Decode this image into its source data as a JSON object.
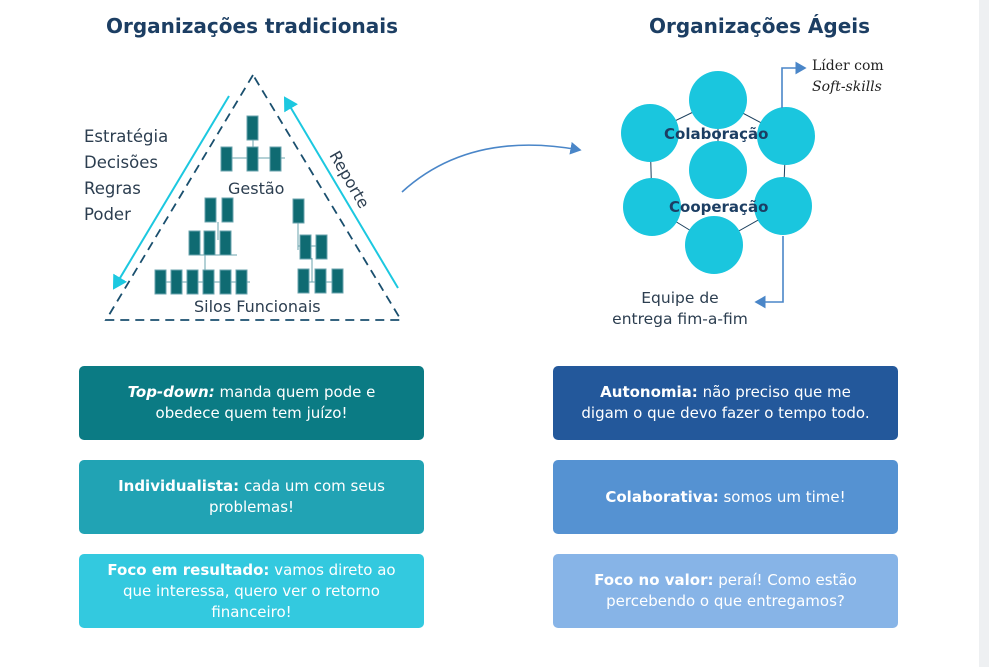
{
  "left": {
    "title": "Organizações tradicionais",
    "list": [
      "Estratégia",
      "Decisões",
      "Regras",
      "Poder"
    ],
    "reporte": "Reporte",
    "gestao": "Gestão",
    "silos": "Silos Funcionais"
  },
  "right": {
    "title": "Organizações Ágeis",
    "colaboracao": "Colaboração",
    "cooperacao": "Cooperação",
    "lider_line1": "Líder com",
    "lider_line2": "Soft-skills",
    "equipe_line1": "Equipe de",
    "equipe_line2": "entrega fim-a-fim"
  },
  "cards_left": [
    {
      "bold": "Top-down:",
      "text": " manda quem pode e obedece quem tem juízo!",
      "color": "#0b7b84"
    },
    {
      "bold": "Individualista:",
      "text": " cada um com seus problemas!",
      "color": "#21a3b4"
    },
    {
      "bold": "Foco em resultado:",
      "text": " vamos direto ao que interessa, quero ver o retorno financeiro!",
      "color": "#33c9df"
    }
  ],
  "cards_right": [
    {
      "bold": "Autonomia:",
      "text": " não preciso que me digam o que devo fazer o tempo todo.",
      "color": "#23589b"
    },
    {
      "bold": "Colaborativa:",
      "text": " somos um time!",
      "color": "#5592d2"
    },
    {
      "bold": "Foco no valor:",
      "text": " peraí! Como estão percebendo o que entregamos?",
      "color": "#87b4e7"
    }
  ],
  "colors": {
    "dark_teal": "#0f6b72",
    "cyan": "#1cc8e0",
    "arrow": "#4a86c8",
    "title": "#1c3e63"
  }
}
